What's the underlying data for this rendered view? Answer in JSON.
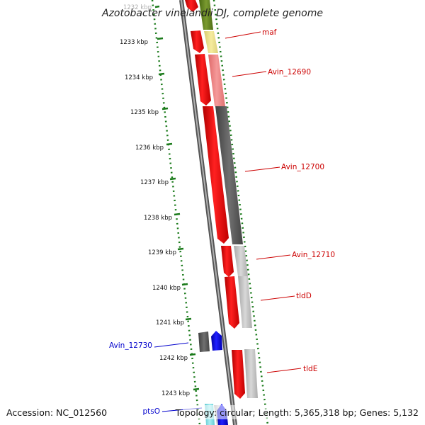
{
  "title": "Azotobacter vinelandii DJ, complete genome",
  "footer": {
    "accession": "Accession: NC_012560",
    "info": "Topology: circular; Length: 5,365,318 bp; Genes: 5,132"
  },
  "ruler": {
    "unit": "kbp",
    "tick_labels": [
      "1232 kbp",
      "1233 kbp",
      "1234 kbp",
      "1235 kbp",
      "1236 kbp",
      "1237 kbp",
      "1238 kbp",
      "1239 kbp",
      "1240 kbp",
      "1241 kbp",
      "1242 kbp",
      "1243 kbp"
    ],
    "tick_color": "#1a7a1a"
  },
  "colors": {
    "backbone": "#8c8c8c",
    "forward_red": "#ff0000",
    "reverse_blue": "#0000ff",
    "olive": "#6b8e23",
    "khaki": "#f0e68c",
    "salmon": "#f08080",
    "dark_gray": "#606060",
    "light_gray": "#c0c0c0",
    "cyan": "#80e0e8",
    "label_red": "#cc0000",
    "label_blue": "#0000cc"
  },
  "gene_labels": [
    {
      "name": "maf",
      "strand": "forward"
    },
    {
      "name": "Avin_12690",
      "strand": "forward"
    },
    {
      "name": "Avin_12700",
      "strand": "forward"
    },
    {
      "name": "Avin_12710",
      "strand": "forward"
    },
    {
      "name": "tldD",
      "strand": "forward"
    },
    {
      "name": "tldE",
      "strand": "forward"
    },
    {
      "name": "Avin_12730",
      "strand": "reverse"
    },
    {
      "name": "ptsO",
      "strand": "reverse"
    }
  ],
  "features": [
    {
      "strand": "forward",
      "type": "cds",
      "color": "forward_red"
    },
    {
      "strand": "forward",
      "type": "cds",
      "color": "forward_red"
    },
    {
      "strand": "forward",
      "type": "cds",
      "color": "forward_red"
    },
    {
      "strand": "forward",
      "type": "cds",
      "color": "forward_red"
    },
    {
      "strand": "forward",
      "type": "cds",
      "color": "forward_red"
    },
    {
      "strand": "forward",
      "type": "cds",
      "color": "forward_red"
    },
    {
      "strand": "forward",
      "type": "cds",
      "color": "forward_red"
    },
    {
      "strand": "reverse",
      "type": "cds",
      "color": "reverse_blue"
    },
    {
      "strand": "reverse",
      "type": "cds",
      "color": "reverse_blue"
    },
    {
      "strand": "forward",
      "type": "cog",
      "color": "olive"
    },
    {
      "strand": "forward",
      "type": "cog",
      "color": "khaki"
    },
    {
      "strand": "forward",
      "type": "cog",
      "color": "salmon"
    },
    {
      "strand": "forward",
      "type": "cog",
      "color": "dark_gray"
    },
    {
      "strand": "forward",
      "type": "cog",
      "color": "light_gray"
    },
    {
      "strand": "forward",
      "type": "cog",
      "color": "light_gray"
    },
    {
      "strand": "forward",
      "type": "cog",
      "color": "light_gray"
    },
    {
      "strand": "reverse",
      "type": "cog",
      "color": "dark_gray"
    },
    {
      "strand": "reverse",
      "type": "cog",
      "color": "cyan"
    }
  ]
}
